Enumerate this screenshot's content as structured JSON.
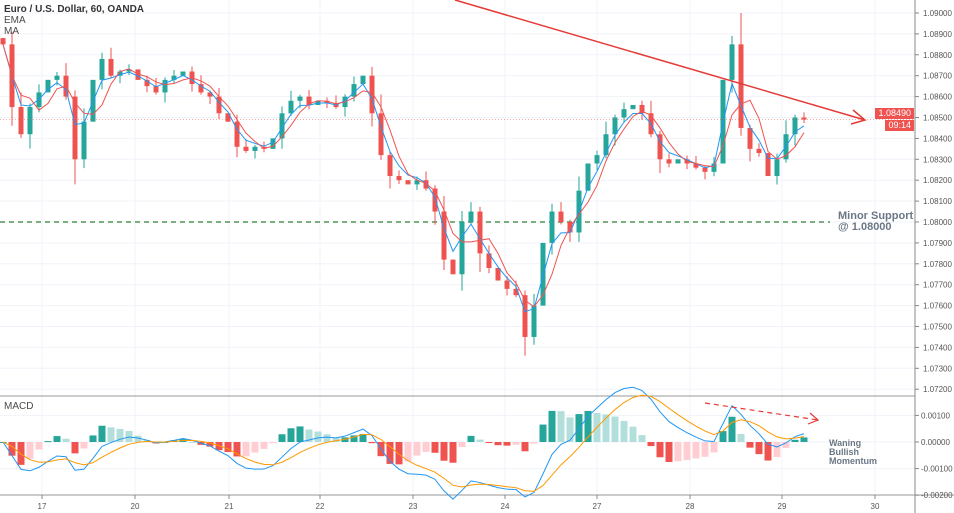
{
  "header": {
    "title": "Euro / U.S. Dollar, 60, OANDA",
    "indicators": [
      "EMA",
      "MA"
    ],
    "macd_label": "MACD"
  },
  "price_tag": {
    "price": "1.08490",
    "countdown": "09:14"
  },
  "annotations": {
    "support_line1": "Minor Support",
    "support_line2": "@ 1.08000",
    "waning1": "Waning",
    "waning2": "Bullish",
    "waning3": "Momentum"
  },
  "colors": {
    "up": "#26a69a",
    "down": "#ef5350",
    "ema": "#2196f3",
    "ma": "#ef5350",
    "macd": "#2196f3",
    "signal": "#ff9800",
    "hist_up_strong": "#26a69a",
    "hist_up_weak": "#b2dfdb",
    "hist_down_strong": "#ef5350",
    "hist_down_weak": "#ffcdd2",
    "support": "#2e7d32",
    "trendline": "#e53935"
  },
  "chart_data": {
    "type": "candlestick",
    "price_axis": {
      "ticks": [
        "1.09000",
        "1.08900",
        "1.08800",
        "1.08700",
        "1.08600",
        "1.08500",
        "1.08400",
        "1.08300",
        "1.08200",
        "1.08100",
        "1.08000",
        "1.07900",
        "1.07800",
        "1.07700",
        "1.07600",
        "1.07500",
        "1.07400",
        "1.07300",
        "1.07200"
      ],
      "range": [
        1.0715,
        1.0912
      ]
    },
    "macd_axis": {
      "ticks": [
        "0.00100",
        "0.00000",
        "-0.00100",
        "-0.00200"
      ],
      "range": [
        -0.0021,
        0.0017
      ]
    },
    "x_ticks": [
      "17",
      "20",
      "21",
      "22",
      "23",
      "24",
      "27",
      "28",
      "29",
      "30"
    ],
    "grid": true,
    "support_level": 1.08,
    "closes": [
      1.0885,
      1.0855,
      1.0842,
      1.0855,
      1.0862,
      1.0868,
      1.087,
      1.086,
      1.083,
      1.0848,
      1.0868,
      1.0878,
      1.087,
      1.0872,
      1.0873,
      1.0868,
      1.0865,
      1.0862,
      1.0868,
      1.087,
      1.0872,
      1.0866,
      1.0862,
      1.086,
      1.0852,
      1.0848,
      1.0836,
      1.0834,
      1.0836,
      1.0835,
      1.084,
      1.0852,
      1.0858,
      1.086,
      1.0856,
      1.0858,
      1.0857,
      1.0855,
      1.086,
      1.0866,
      1.087,
      1.0852,
      1.0832,
      1.0822,
      1.082,
      1.0818,
      1.082,
      1.0816,
      1.0805,
      1.0782,
      1.0775,
      1.08,
      1.0805,
      1.0785,
      1.0778,
      1.0772,
      1.0768,
      1.0765,
      1.0745,
      1.076,
      1.079,
      1.0805,
      1.08,
      1.0795,
      1.0815,
      1.0828,
      1.0832,
      1.0842,
      1.085,
      1.0854,
      1.0856,
      1.0852,
      1.0842,
      1.083,
      1.0828,
      1.083,
      1.0828,
      1.0826,
      1.0824,
      1.0828,
      1.0868,
      1.0885,
      1.0845,
      1.0835,
      1.0833,
      1.0822,
      1.083,
      1.0842,
      1.085,
      1.0849
    ]
  }
}
